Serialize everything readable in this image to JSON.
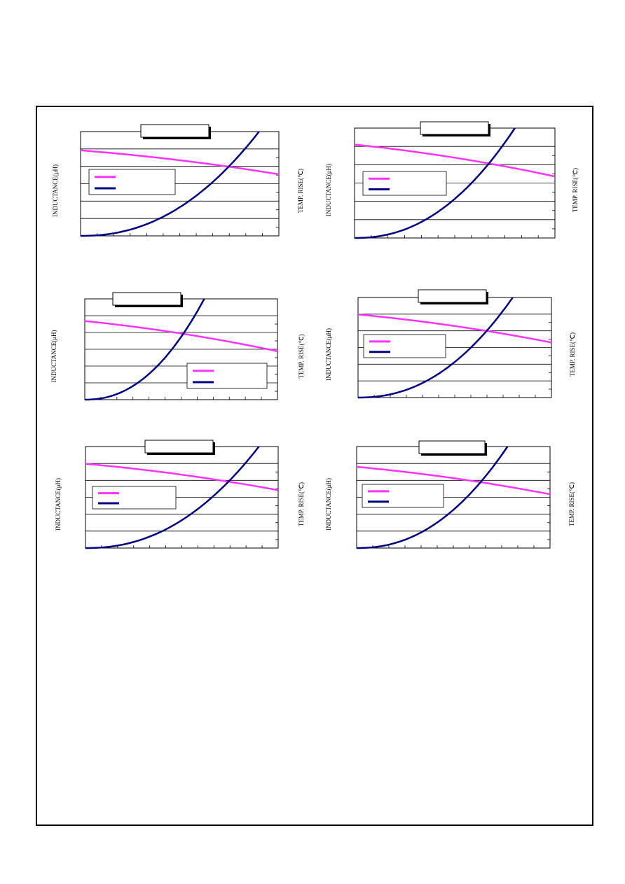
{
  "panels": [
    {
      "y_label": "INDUCTANCE(μH)",
      "y2_label": "TEMP. RISE(℃)"
    },
    {
      "y_label": "INDUCTANCE(μH)",
      "y2_label": "TEMP. RISE(℃)"
    },
    {
      "y_label": "INDUCTANCE(μH)",
      "y2_label": "TEMP. RISE(℃)"
    },
    {
      "y_label": "INDUCTANCE(μH)",
      "y2_label": "TEMP. RISE(℃)"
    },
    {
      "y_label": "INDUCTANCE(μH)",
      "y2_label": "TEMP. RISE(℃)"
    },
    {
      "y_label": "INDUCTANCE(μH)",
      "y2_label": "TEMP. RISE(℃)"
    }
  ]
}
